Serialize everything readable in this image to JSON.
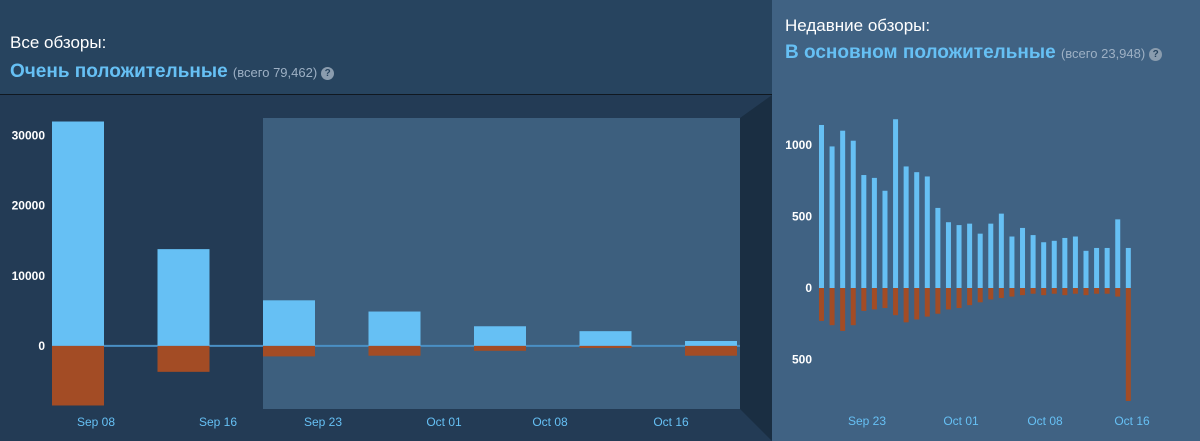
{
  "all_reviews": {
    "label": "Все обзоры:",
    "summary": "Очень положительные",
    "total_prefix": "(всего",
    "total_count": "79,462",
    "total_suffix": ")"
  },
  "recent_reviews": {
    "label": "Недавние обзоры:",
    "summary": "В основном положительные",
    "total_prefix": "(всего",
    "total_count": "23,948",
    "total_suffix": ")"
  },
  "help_glyph": "?",
  "colors": {
    "positive": "#66c0f4",
    "negative": "#a34c25",
    "left_bg": "#233b55",
    "right_bg": "#406283",
    "selection": "#3d5f7e"
  },
  "chart_data": [
    {
      "type": "bar",
      "title": "",
      "ylim": [
        -9000,
        32500
      ],
      "ytick_labels": [
        "30000",
        "20000",
        "10000",
        "0"
      ],
      "yticks": [
        30000,
        20000,
        10000,
        0
      ],
      "x_tick_labels": [
        "Sep 08",
        "Sep 16",
        "Sep 23",
        "Oct 01",
        "Oct 08",
        "Oct 16"
      ],
      "positive": [
        32000,
        13800,
        6500,
        4900,
        2800,
        2100,
        700
      ],
      "negative": [
        8500,
        3700,
        1500,
        1400,
        700,
        300,
        1400
      ],
      "grid": false,
      "legend": "none"
    },
    {
      "type": "bar",
      "title": "",
      "ylim": [
        -820,
        1230
      ],
      "ytick_labels": [
        "1000",
        "500",
        "0",
        "500"
      ],
      "yticks": [
        1000,
        500,
        0,
        -500
      ],
      "x_tick_labels": [
        "Sep 23",
        "Oct 01",
        "Oct 08",
        "Oct 16"
      ],
      "positive": [
        1140,
        990,
        1100,
        1030,
        790,
        770,
        680,
        1180,
        850,
        810,
        780,
        560,
        460,
        440,
        450,
        380,
        450,
        520,
        360,
        420,
        370,
        320,
        330,
        350,
        360,
        260,
        280,
        280,
        480,
        280
      ],
      "negative": [
        230,
        260,
        300,
        260,
        160,
        150,
        140,
        190,
        240,
        220,
        200,
        180,
        150,
        140,
        120,
        100,
        80,
        70,
        60,
        50,
        40,
        50,
        40,
        50,
        40,
        50,
        40,
        40,
        60,
        790
      ],
      "grid": false,
      "legend": "none"
    }
  ]
}
